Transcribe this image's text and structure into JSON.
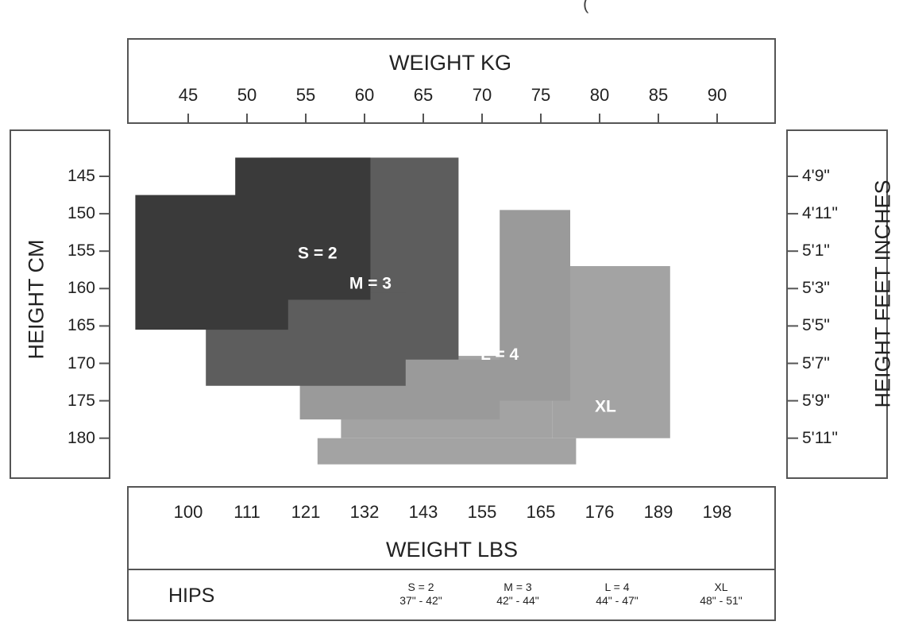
{
  "fragment_mark": "(",
  "chart_data": {
    "type": "area",
    "top_axis": {
      "title": "WEIGHT KG",
      "ticks": [
        "45",
        "50",
        "55",
        "60",
        "65",
        "70",
        "75",
        "80",
        "85",
        "90"
      ],
      "range": [
        45,
        90
      ]
    },
    "bottom_axis": {
      "title": "WEIGHT LBS",
      "ticks": [
        "100",
        "111",
        "121",
        "132",
        "143",
        "155",
        "165",
        "176",
        "189",
        "198"
      ]
    },
    "left_axis": {
      "title": "HEIGHT CM",
      "ticks": [
        "145",
        "150",
        "155",
        "160",
        "165",
        "170",
        "175",
        "180"
      ],
      "range": [
        145,
        180
      ]
    },
    "right_axis": {
      "title": "HEIGHT FEET INCHES",
      "ticks": [
        "4'9\"",
        "4'11\"",
        "5'1\"",
        "5'3\"",
        "5'5\"",
        "5'7\"",
        "5'9\"",
        "5'11\""
      ]
    },
    "sizes": [
      {
        "label": "XL",
        "color": "#a3a3a3",
        "regions": [
          {
            "weight": [
              76,
              86
            ],
            "height": [
              157,
              180
            ]
          },
          {
            "weight": [
              58,
              76
            ],
            "height": [
              169,
              180
            ]
          },
          {
            "weight": [
              56,
              78
            ],
            "height": [
              180,
              183.5
            ]
          }
        ]
      },
      {
        "label": "L = 4",
        "color": "#9a9a9a",
        "regions": [
          {
            "weight": [
              71.5,
              77.5
            ],
            "height": [
              149.5,
              175
            ]
          },
          {
            "weight": [
              54.5,
              71.5
            ],
            "height": [
              172.5,
              177.5
            ]
          },
          {
            "weight": [
              58.5,
              71.5
            ],
            "height": [
              169.5,
              172.5
            ]
          }
        ]
      },
      {
        "label": "M = 3",
        "color": "#5d5d5d",
        "regions": [
          {
            "weight": [
              52,
              68
            ],
            "height": [
              142.5,
              169.5
            ]
          },
          {
            "weight": [
              46.5,
              63.5
            ],
            "height": [
              160.5,
              173
            ]
          },
          {
            "weight": [
              63.5,
              68
            ],
            "height": [
              169.5,
              169.5
            ]
          }
        ]
      },
      {
        "label": "S = 2",
        "color": "#3a3a3a",
        "regions": [
          {
            "weight": [
              49,
              60.5
            ],
            "height": [
              142.5,
              161.5
            ]
          },
          {
            "weight": [
              40.5,
              53.5
            ],
            "height": [
              147.5,
              165.5
            ]
          }
        ]
      }
    ]
  },
  "hips": {
    "title": "HIPS",
    "columns": [
      {
        "size": "S = 2",
        "range": "37\" - 42\""
      },
      {
        "size": "M = 3",
        "range": "42\" - 44\""
      },
      {
        "size": "L = 4",
        "range": "44\" - 47\""
      },
      {
        "size": "XL",
        "range": "48\" - 51\""
      }
    ]
  }
}
